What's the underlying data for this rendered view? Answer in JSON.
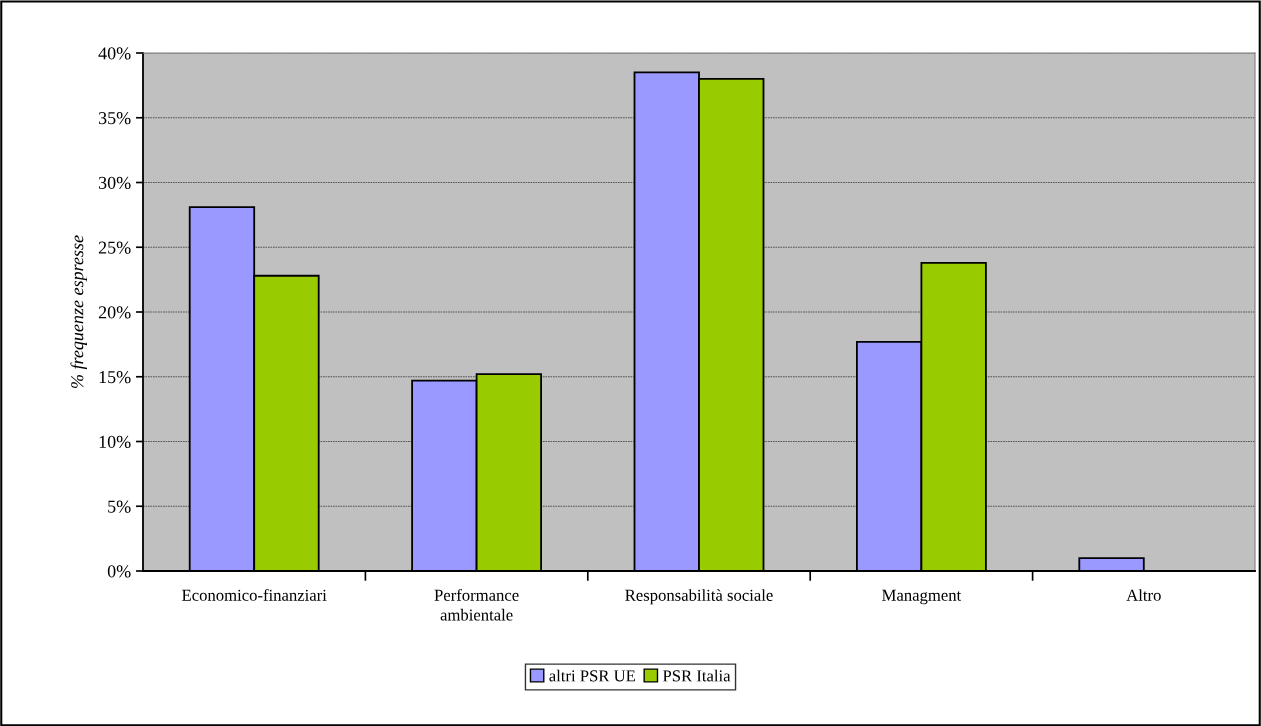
{
  "chart_data": {
    "type": "bar",
    "ylabel": "% frequenze espresse",
    "categories": [
      "Economico-finanziari",
      "Performance\nambientale",
      "Responsabilità sociale",
      "Managment",
      "Altro"
    ],
    "series": [
      {
        "name": "altri PSR UE",
        "color": "#9999ff",
        "values": [
          28.1,
          14.7,
          38.5,
          17.7,
          1.0
        ]
      },
      {
        "name": "PSR Italia",
        "color": "#99cc00",
        "values": [
          22.8,
          15.2,
          38.0,
          23.8,
          null
        ]
      }
    ],
    "ylim": [
      0,
      40
    ],
    "yticks": [
      {
        "value": 0,
        "label": "0%"
      },
      {
        "value": 5,
        "label": "5%"
      },
      {
        "value": 10,
        "label": "10%"
      },
      {
        "value": 15,
        "label": "15%"
      },
      {
        "value": 20,
        "label": "20%"
      },
      {
        "value": 25,
        "label": "25%"
      },
      {
        "value": 30,
        "label": "30%"
      },
      {
        "value": 35,
        "label": "35%"
      },
      {
        "value": 40,
        "label": "40%"
      }
    ],
    "grid": "y",
    "legend": "bottom"
  }
}
